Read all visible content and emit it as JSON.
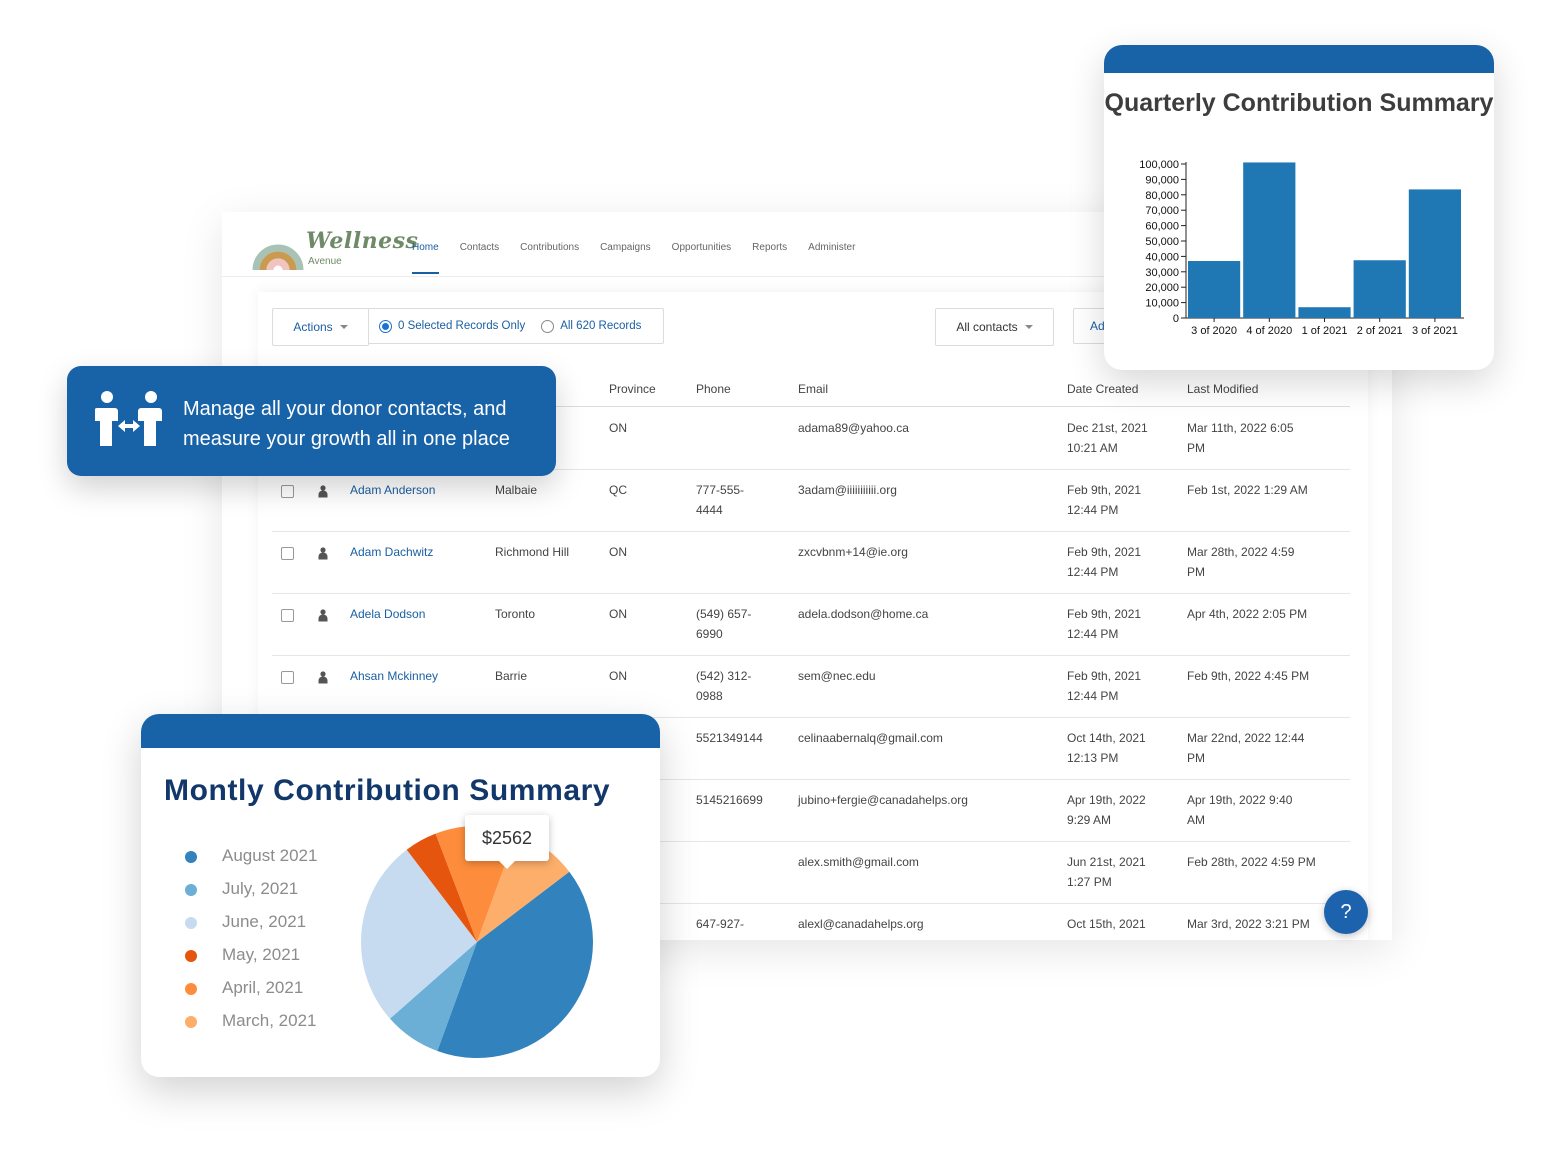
{
  "brand": {
    "name": "Wellness",
    "sub": "Avenue"
  },
  "nav": [
    {
      "label": "Home",
      "active": true
    },
    {
      "label": "Contacts"
    },
    {
      "label": "Contributions"
    },
    {
      "label": "Campaigns"
    },
    {
      "label": "Opportunities"
    },
    {
      "label": "Reports"
    },
    {
      "label": "Administer"
    }
  ],
  "toolbar": {
    "actions": "Actions",
    "selected_only": "0 Selected Records Only",
    "all_records": "All 620 Records",
    "filter": "All contacts",
    "add": "Ad"
  },
  "table": {
    "headers": [
      "Province",
      "Phone",
      "Email",
      "Date Created",
      "Last Modified"
    ],
    "rows": [
      {
        "name": "",
        "city": "",
        "province": "ON",
        "phone": "",
        "email": "adama89@yahoo.ca",
        "created": "Dec 21st, 2021\n10:21 AM",
        "modified": "Mar 11th, 2022 6:05\nPM"
      },
      {
        "name": "Adam Anderson",
        "city": "Malbaie",
        "province": "QC",
        "phone": "777-555-\n4444",
        "email": "3adam@iiiiiiiiiii.org",
        "created": "Feb 9th, 2021\n12:44 PM",
        "modified": "Feb 1st, 2022 1:29 AM"
      },
      {
        "name": "Adam Dachwitz",
        "city": "Richmond Hill",
        "province": "ON",
        "phone": "",
        "email": "zxcvbnm+14@ie.org",
        "created": "Feb 9th, 2021\n12:44 PM",
        "modified": "Mar 28th, 2022 4:59\nPM"
      },
      {
        "name": "Adela Dodson",
        "city": "Toronto",
        "province": "ON",
        "phone": "(549) 657-\n6990",
        "email": "adela.dodson@home.ca",
        "created": "Feb 9th, 2021\n12:44 PM",
        "modified": "Apr 4th, 2022 2:05 PM"
      },
      {
        "name": "Ahsan Mckinney",
        "city": "Barrie",
        "province": "ON",
        "phone": "(542) 312-\n0988",
        "email": "sem@nec.edu",
        "created": "Feb 9th, 2021\n12:44 PM",
        "modified": "Feb 9th, 2022 4:45 PM"
      },
      {
        "name": "",
        "city": "",
        "province": "",
        "phone": "5521349144",
        "email": "celinaabernalq@gmail.com",
        "created": "Oct 14th, 2021\n12:13 PM",
        "modified": "Mar 22nd, 2022 12:44\nPM"
      },
      {
        "name": "",
        "city": "",
        "province": "",
        "phone": "5145216699",
        "email": "jubino+fergie@canadahelps.org",
        "created": "Apr 19th, 2022\n9:29 AM",
        "modified": "Apr 19th, 2022 9:40\nAM"
      },
      {
        "name": "",
        "city": "",
        "province": "",
        "phone": "",
        "email": "alex.smith@gmail.com",
        "created": "Jun 21st, 2021\n1:27 PM",
        "modified": "Feb 28th, 2022 4:59 PM"
      },
      {
        "name": "",
        "city": "",
        "province": "",
        "phone": "647-927-",
        "email": "alexl@canadahelps.org",
        "created": "Oct 15th, 2021",
        "modified": "Mar 3rd, 2022 3:21 PM"
      }
    ]
  },
  "help": "?",
  "callout": {
    "text": "Manage all your donor contacts, and measure your growth all in one place",
    "icon": "people-exchange-icon"
  },
  "quarterly": {
    "title": "Quarterly Contribution Summary",
    "chart_data": {
      "type": "bar",
      "title": "Quarterly Contribution Summary",
      "categories": [
        "3 of 2020",
        "4 of 2020",
        "1 of 2021",
        "2 of 2021",
        "3 of 2021"
      ],
      "values": [
        37000,
        101000,
        7000,
        37500,
        83500
      ],
      "ylim": [
        0,
        100000
      ],
      "yticks": [
        0,
        10000,
        20000,
        30000,
        40000,
        50000,
        60000,
        70000,
        80000,
        90000,
        100000
      ],
      "ytick_labels": [
        "0",
        "10,000",
        "20,000",
        "30,000",
        "40,000",
        "50,000",
        "60,000",
        "70,000",
        "80,000",
        "90,000",
        "100,000"
      ],
      "color": "#1f77b4"
    }
  },
  "monthly": {
    "title": "Montly Contribution Summary",
    "tooltip": "$2562",
    "chart_data": {
      "type": "pie",
      "title": "Montly Contribution Summary",
      "categories": [
        "August 2021",
        "July, 2021",
        "June, 2021",
        "May, 2021",
        "April, 2021",
        "March, 2021"
      ],
      "values": [
        36,
        7,
        23,
        4,
        10,
        8
      ],
      "colors": [
        "#3182bd",
        "#6baed6",
        "#c6dbef",
        "#e6550d",
        "#fd8d3c",
        "#fdae6b"
      ]
    }
  }
}
